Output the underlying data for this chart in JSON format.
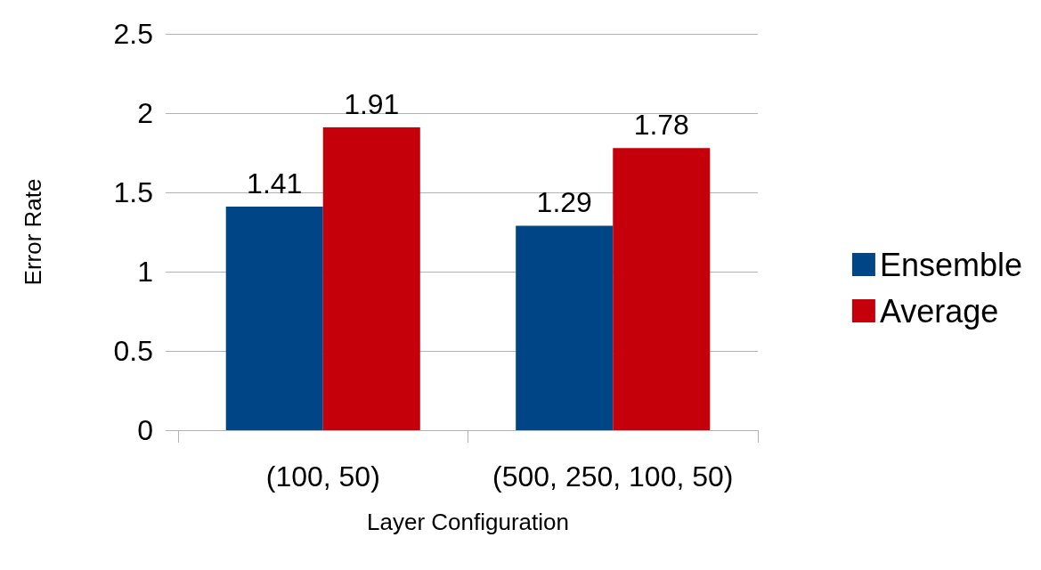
{
  "chart_data": {
    "type": "bar",
    "xlabel": "Layer Configuration",
    "ylabel": "Error Rate",
    "categories": [
      "(100, 50)",
      "(500, 250, 100, 50)"
    ],
    "series": [
      {
        "name": "Ensemble",
        "color": "#004586",
        "values": [
          1.41,
          1.29
        ]
      },
      {
        "name": "Average",
        "color": "#c5000b",
        "values": [
          1.91,
          1.78
        ]
      }
    ],
    "ylim": [
      0,
      2.5
    ],
    "yticks": [
      0,
      0.5,
      1,
      1.5,
      2,
      2.5
    ],
    "grid": "y",
    "legend": "right",
    "data_labels": true
  }
}
